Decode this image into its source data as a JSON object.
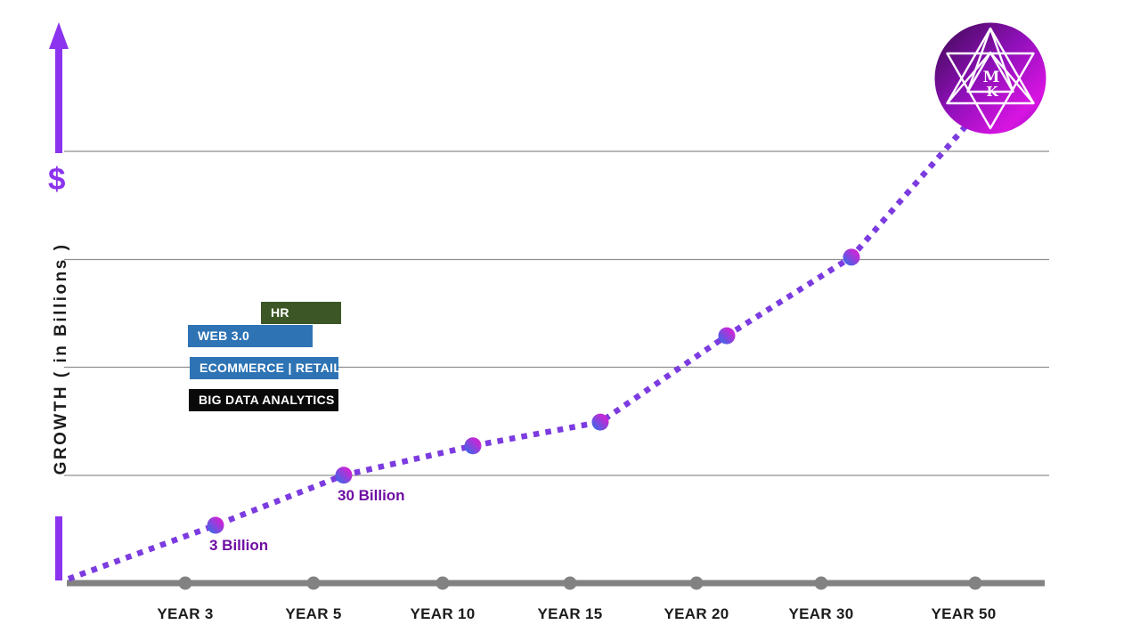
{
  "colors": {
    "accent_purple": "#8B33EE",
    "line_purple": "#7C3BE0",
    "dot_blue": "#4663E6",
    "dot_magenta": "#C32AD6",
    "annotation_purple": "#6E0FA3",
    "axis_gray": "#828282",
    "grid_gray": "#8f8f8f",
    "label_dark": "#1c1c1c",
    "logo_dark": "#3A0A4E",
    "logo_mid": "#8E10B8",
    "logo_bright": "#D814E2"
  },
  "chart_data": {
    "type": "line",
    "title": "",
    "ylabel": "GROWTH ( in Billions )",
    "y_axis_symbol": "$",
    "xlabel": "",
    "categories": [
      "YEAR 3",
      "YEAR 5",
      "YEAR 10",
      "YEAR 15",
      "YEAR 20",
      "YEAR 30",
      "YEAR 50"
    ],
    "grid": "horizontal, 4 gridlines",
    "legend": "none",
    "line_style": "dotted",
    "series": [
      {
        "name": "Growth in Billions",
        "points": [
          {
            "category": null,
            "growth_level_pct": 1,
            "dot": false,
            "annotation": null
          },
          {
            "category": "YEAR 3",
            "growth_level_pct": 13.4,
            "dot": true,
            "annotation": "3 Billion"
          },
          {
            "category": "YEAR 5",
            "growth_level_pct": 25,
            "dot": true,
            "annotation": "30 Billion"
          },
          {
            "category": "YEAR 10",
            "growth_level_pct": 31.8,
            "dot": true,
            "annotation": null
          },
          {
            "category": "YEAR 15",
            "growth_level_pct": 37.3,
            "dot": true,
            "annotation": null
          },
          {
            "category": "YEAR 20",
            "growth_level_pct": 57.3,
            "dot": true,
            "annotation": null
          },
          {
            "category": "YEAR 30",
            "growth_level_pct": 75.5,
            "dot": true,
            "annotation": null
          },
          {
            "category": "YEAR 50",
            "growth_level_pct": 106,
            "dot": false,
            "annotation": null
          }
        ]
      }
    ],
    "known_values": [
      {
        "category": "YEAR 3",
        "value": "3 Billion"
      },
      {
        "category": "YEAR 5",
        "value": "30 Billion"
      }
    ]
  },
  "sector_labels": [
    {
      "label": "HR",
      "color": "#3C5626"
    },
    {
      "label": "WEB 3.0",
      "color": "#2E74B5"
    },
    {
      "label": "ECOMMERCE | RETAIL",
      "color": "#2E74B5"
    },
    {
      "label": "BIG DATA ANALYTICS",
      "color": "#0A0A0A"
    }
  ],
  "logo": {
    "letter_top": "M",
    "letter_bottom": "K"
  }
}
